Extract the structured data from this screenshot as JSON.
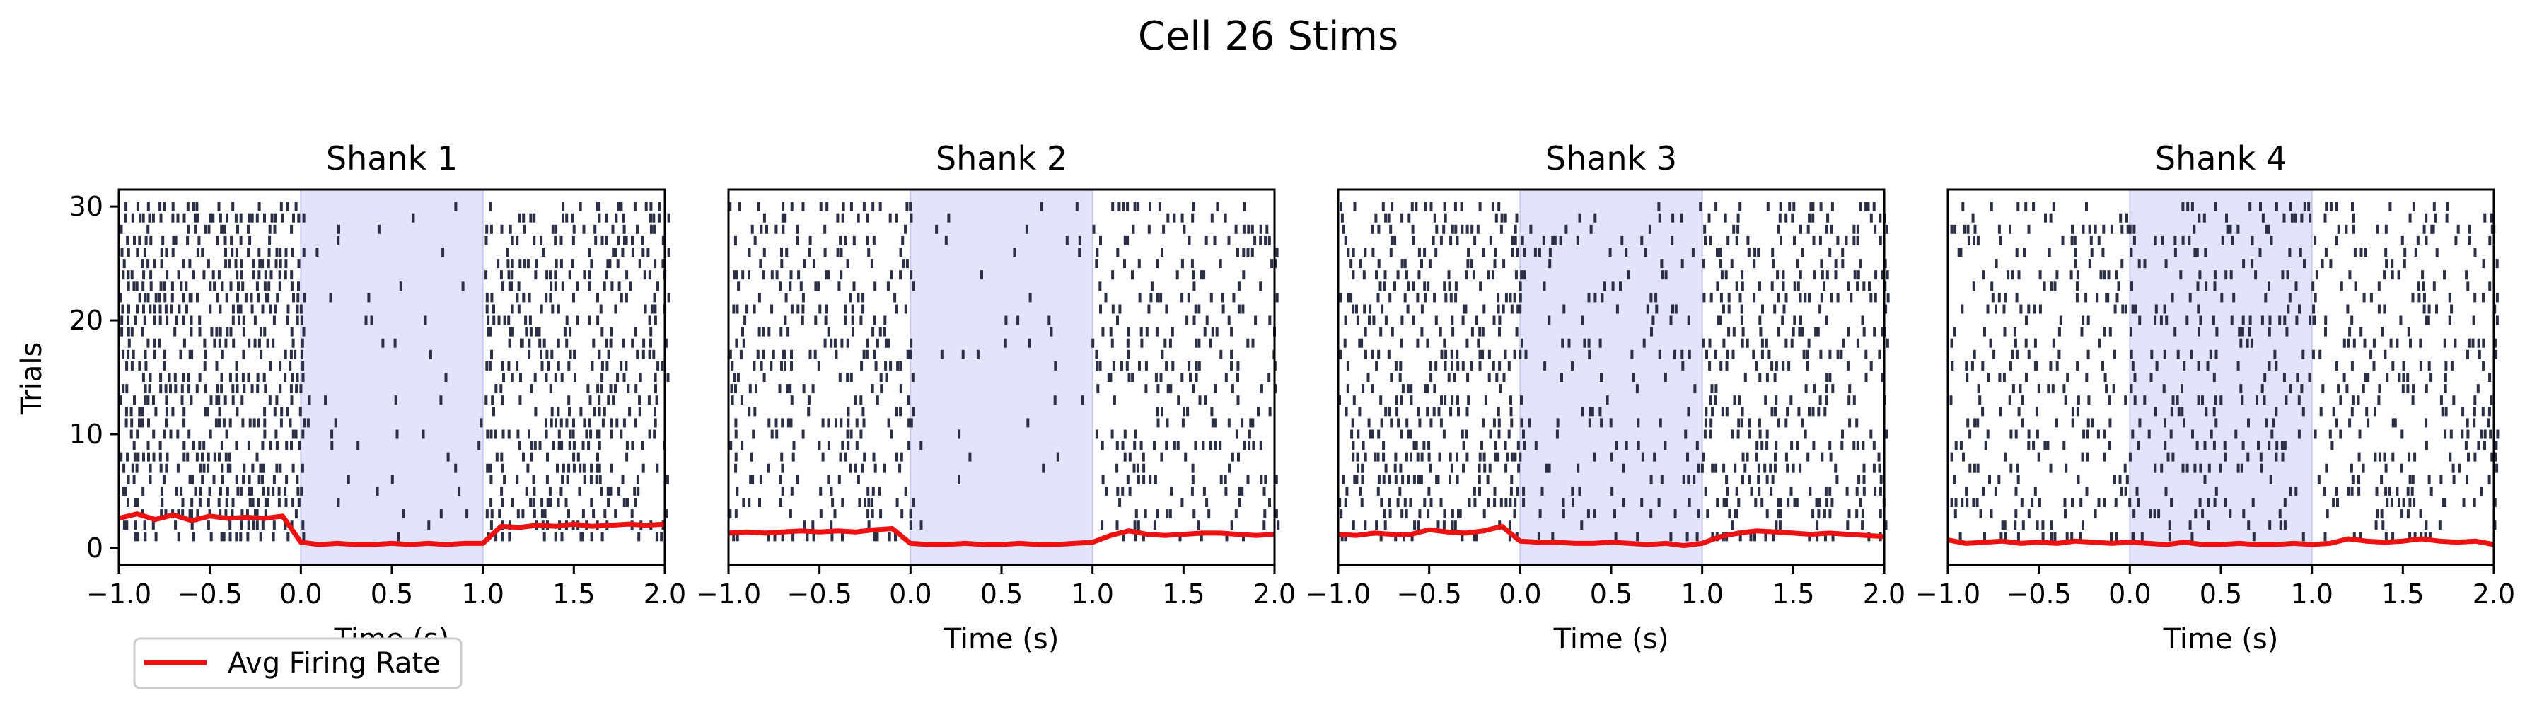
{
  "figure": {
    "suptitle": "Cell 26 Stims",
    "ylabel": "Trials",
    "legend_label": "Avg Firing Rate"
  },
  "colors": {
    "spike": "#2b2f45",
    "stim_shade": "#e3e3fb",
    "stim_edge": "#c9c9ee",
    "rate_line": "#ee1111"
  },
  "chart_data": [
    {
      "type": "scatter",
      "title": "Shank 1",
      "xlabel": "Time (s)",
      "ylabel": "Trials",
      "xlim": [
        -1.0,
        2.0
      ],
      "ylim": [
        -1.5,
        31.5
      ],
      "xticks": [
        -1.0,
        -0.5,
        0.0,
        0.5,
        1.0,
        1.5,
        2.0
      ],
      "yticks": [
        0,
        10,
        20,
        30
      ],
      "stim_window": [
        0.0,
        1.0
      ],
      "trials": 30,
      "series": [
        {
          "name": "Avg Firing Rate",
          "x": [
            -1.0,
            -0.9,
            -0.8,
            -0.7,
            -0.6,
            -0.5,
            -0.4,
            -0.3,
            -0.2,
            -0.1,
            0.0,
            0.1,
            0.2,
            0.3,
            0.4,
            0.5,
            0.6,
            0.7,
            0.8,
            0.9,
            1.0,
            1.1,
            1.2,
            1.3,
            1.4,
            1.5,
            1.6,
            1.7,
            1.8,
            1.9,
            2.0
          ],
          "y": [
            2.6,
            3.0,
            2.5,
            2.9,
            2.4,
            2.8,
            2.6,
            2.7,
            2.6,
            2.8,
            0.5,
            0.3,
            0.4,
            0.3,
            0.3,
            0.4,
            0.3,
            0.4,
            0.3,
            0.4,
            0.4,
            1.9,
            1.8,
            2.0,
            1.9,
            2.1,
            1.9,
            2.0,
            2.1,
            2.0,
            2.1
          ]
        }
      ],
      "rates": {
        "pre": 0.55,
        "stim": 0.04,
        "post": 0.42
      }
    },
    {
      "type": "scatter",
      "title": "Shank 2",
      "xlabel": "Time (s)",
      "xlim": [
        -1.0,
        2.0
      ],
      "ylim": [
        -1.5,
        31.5
      ],
      "xticks": [
        -1.0,
        -0.5,
        0.0,
        0.5,
        1.0,
        1.5,
        2.0
      ],
      "stim_window": [
        0.0,
        1.0
      ],
      "trials": 30,
      "series": [
        {
          "name": "Avg Firing Rate",
          "x": [
            -1.0,
            -0.9,
            -0.8,
            -0.7,
            -0.6,
            -0.5,
            -0.4,
            -0.3,
            -0.2,
            -0.1,
            0.0,
            0.1,
            0.2,
            0.3,
            0.4,
            0.5,
            0.6,
            0.7,
            0.8,
            0.9,
            1.0,
            1.1,
            1.2,
            1.3,
            1.4,
            1.5,
            1.6,
            1.7,
            1.8,
            1.9,
            2.0
          ],
          "y": [
            1.3,
            1.4,
            1.3,
            1.4,
            1.5,
            1.4,
            1.5,
            1.4,
            1.6,
            1.7,
            0.4,
            0.3,
            0.3,
            0.4,
            0.3,
            0.3,
            0.4,
            0.3,
            0.3,
            0.4,
            0.5,
            1.1,
            1.5,
            1.2,
            1.1,
            1.2,
            1.3,
            1.3,
            1.2,
            1.1,
            1.2
          ]
        }
      ],
      "rates": {
        "pre": 0.32,
        "stim": 0.03,
        "post": 0.26
      }
    },
    {
      "type": "scatter",
      "title": "Shank 3",
      "xlabel": "Time (s)",
      "xlim": [
        -1.0,
        2.0
      ],
      "ylim": [
        -1.5,
        31.5
      ],
      "xticks": [
        -1.0,
        -0.5,
        0.0,
        0.5,
        1.0,
        1.5,
        2.0
      ],
      "stim_window": [
        0.0,
        1.0
      ],
      "trials": 30,
      "series": [
        {
          "name": "Avg Firing Rate",
          "x": [
            -1.0,
            -0.9,
            -0.8,
            -0.7,
            -0.6,
            -0.5,
            -0.4,
            -0.3,
            -0.2,
            -0.1,
            0.0,
            0.1,
            0.2,
            0.3,
            0.4,
            0.5,
            0.6,
            0.7,
            0.8,
            0.9,
            1.0,
            1.1,
            1.2,
            1.3,
            1.4,
            1.5,
            1.6,
            1.7,
            1.8,
            1.9,
            2.0
          ],
          "y": [
            1.2,
            1.1,
            1.3,
            1.2,
            1.2,
            1.6,
            1.4,
            1.3,
            1.5,
            1.9,
            0.6,
            0.5,
            0.5,
            0.4,
            0.4,
            0.5,
            0.4,
            0.3,
            0.4,
            0.2,
            0.4,
            1.0,
            1.3,
            1.5,
            1.4,
            1.3,
            1.2,
            1.3,
            1.2,
            1.1,
            1.0
          ]
        }
      ],
      "rates": {
        "pre": 0.4,
        "stim": 0.14,
        "post": 0.36
      }
    },
    {
      "type": "scatter",
      "title": "Shank 4",
      "xlabel": "Time (s)",
      "xlim": [
        -1.0,
        2.0
      ],
      "ylim": [
        -1.5,
        31.5
      ],
      "xticks": [
        -1.0,
        -0.5,
        0.0,
        0.5,
        1.0,
        1.5,
        2.0
      ],
      "stim_window": [
        0.0,
        1.0
      ],
      "trials": 30,
      "series": [
        {
          "name": "Avg Firing Rate",
          "x": [
            -1.0,
            -0.9,
            -0.8,
            -0.7,
            -0.6,
            -0.5,
            -0.4,
            -0.3,
            -0.2,
            -0.1,
            0.0,
            0.1,
            0.2,
            0.3,
            0.4,
            0.5,
            0.6,
            0.7,
            0.8,
            0.9,
            1.0,
            1.1,
            1.2,
            1.3,
            1.4,
            1.5,
            1.6,
            1.7,
            1.8,
            1.9,
            2.0
          ],
          "y": [
            0.7,
            0.4,
            0.5,
            0.6,
            0.4,
            0.5,
            0.4,
            0.6,
            0.5,
            0.4,
            0.5,
            0.4,
            0.3,
            0.5,
            0.3,
            0.3,
            0.4,
            0.3,
            0.3,
            0.4,
            0.3,
            0.4,
            0.8,
            0.6,
            0.5,
            0.6,
            0.8,
            0.6,
            0.5,
            0.6,
            0.3
          ]
        }
      ],
      "rates": {
        "pre": 0.26,
        "stim": 0.22,
        "post": 0.28
      }
    }
  ]
}
